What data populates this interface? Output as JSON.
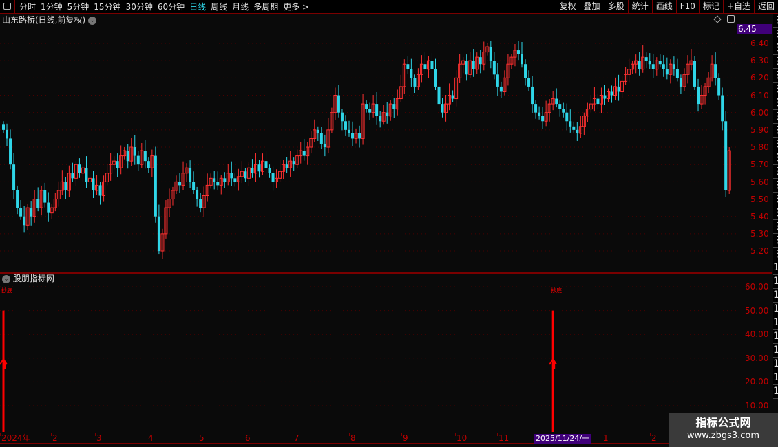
{
  "toolbar": {
    "periods": [
      "分时",
      "1分钟",
      "5分钟",
      "15分钟",
      "30分钟",
      "60分钟",
      "日线",
      "周线",
      "月线",
      "多周期",
      "更多 >"
    ],
    "active": "日线",
    "right": [
      "复权",
      "叠加",
      "多股",
      "统计",
      "画线",
      "F10",
      "标记",
      "+自选",
      "返回"
    ]
  },
  "chart_title": "山东路桥(日线,前复权)",
  "current_price": "6.45",
  "price_axis": [
    "6.40",
    "6.30",
    "6.20",
    "6.10",
    "6.00",
    "5.90",
    "5.80",
    "5.70",
    "5.60",
    "5.50",
    "5.40",
    "5.30",
    "5.20"
  ],
  "indicator": {
    "title": "股朋指标网",
    "axis": [
      "60.00",
      "50.00",
      "40.00",
      "30.00",
      "20.00",
      "10.00"
    ],
    "signal_label": "抄底"
  },
  "date_axis": {
    "labels": [
      "2024年",
      "2",
      "3",
      "4",
      "5",
      "6",
      "7",
      "8",
      "9",
      "10",
      "11",
      "1",
      "2"
    ],
    "highlight": "2025/11/24/一"
  },
  "watermark": {
    "line1": "指标公式网",
    "line2": "www.zbgs3.com"
  },
  "colors": {
    "up": "#ff3030",
    "down": "#2fd6e8",
    "axis": "#c00000",
    "highlight": "#40007a"
  },
  "chart_data": {
    "type": "candlestick",
    "ylim": [
      5.15,
      6.45
    ],
    "closes": [
      5.9,
      5.85,
      5.7,
      5.55,
      5.45,
      5.4,
      5.35,
      5.45,
      5.4,
      5.5,
      5.45,
      5.55,
      5.48,
      5.42,
      5.45,
      5.5,
      5.55,
      5.6,
      5.55,
      5.65,
      5.62,
      5.7,
      5.65,
      5.68,
      5.6,
      5.62,
      5.55,
      5.58,
      5.52,
      5.6,
      5.65,
      5.7,
      5.72,
      5.68,
      5.75,
      5.78,
      5.72,
      5.8,
      5.75,
      5.7,
      5.78,
      5.72,
      5.68,
      5.75,
      5.4,
      5.2,
      5.3,
      5.45,
      5.5,
      5.55,
      5.6,
      5.58,
      5.65,
      5.68,
      5.6,
      5.55,
      5.5,
      5.45,
      5.52,
      5.58,
      5.62,
      5.6,
      5.58,
      5.62,
      5.6,
      5.65,
      5.62,
      5.6,
      5.63,
      5.66,
      5.62,
      5.68,
      5.65,
      5.7,
      5.66,
      5.72,
      5.68,
      5.65,
      5.6,
      5.62,
      5.66,
      5.7,
      5.68,
      5.72,
      5.7,
      5.75,
      5.78,
      5.75,
      5.8,
      5.85,
      5.9,
      5.88,
      5.82,
      5.8,
      5.9,
      6.0,
      6.1,
      6.0,
      5.95,
      5.9,
      5.88,
      5.85,
      5.88,
      5.85,
      6.05,
      6.02,
      6.0,
      6.05,
      5.98,
      5.95,
      6.0,
      5.98,
      6.05,
      6.02,
      6.08,
      6.15,
      6.28,
      6.25,
      6.2,
      6.15,
      6.22,
      6.28,
      6.25,
      6.3,
      6.25,
      6.15,
      6.05,
      6.0,
      6.05,
      6.1,
      6.08,
      6.2,
      6.28,
      6.3,
      6.22,
      6.3,
      6.25,
      6.32,
      6.28,
      6.35,
      6.38,
      6.3,
      6.22,
      6.15,
      6.12,
      6.2,
      6.28,
      6.32,
      6.36,
      6.34,
      6.28,
      6.2,
      6.15,
      6.05,
      6.0,
      5.98,
      5.95,
      6.0,
      6.05,
      6.08,
      6.05,
      6.02,
      6.0,
      5.95,
      5.92,
      5.9,
      5.88,
      5.92,
      5.98,
      6.02,
      6.05,
      6.08,
      6.05,
      6.1,
      6.08,
      6.12,
      6.1,
      6.15,
      6.12,
      6.18,
      6.22,
      6.25,
      6.28,
      6.3,
      6.25,
      6.32,
      6.3,
      6.28,
      6.25,
      6.3,
      6.28,
      6.25,
      6.22,
      6.28,
      6.25,
      6.2,
      6.15,
      6.22,
      6.28,
      6.3,
      6.15,
      6.05,
      6.1,
      6.15,
      6.2,
      6.28,
      6.2,
      6.1,
      5.95,
      5.55,
      5.78
    ],
    "indicator_ylim": [
      5,
      65
    ],
    "signals": [
      {
        "index": 0,
        "value": 50
      },
      {
        "index": 159,
        "value": 50
      }
    ]
  }
}
